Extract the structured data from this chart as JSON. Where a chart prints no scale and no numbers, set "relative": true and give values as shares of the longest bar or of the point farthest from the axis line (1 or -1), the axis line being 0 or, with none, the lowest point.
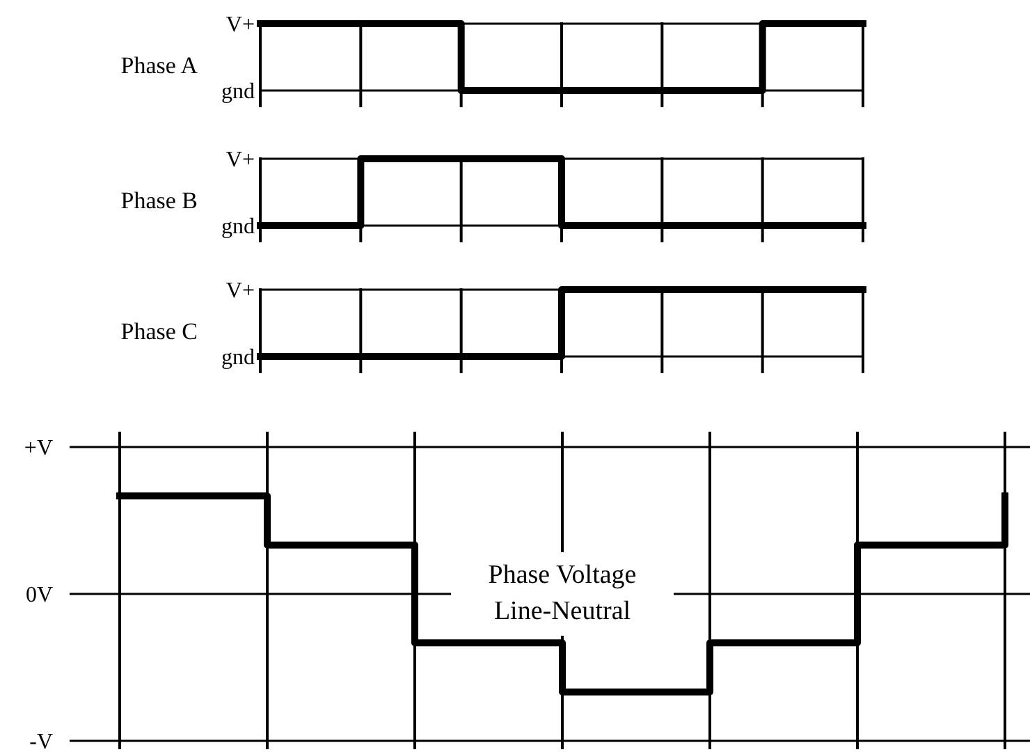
{
  "chart_data": [
    {
      "type": "step",
      "ylabel": "Phase A",
      "categories": [
        null,
        null,
        null,
        null,
        null,
        null,
        null
      ],
      "relative": true,
      "grid": "x",
      "ref_lines": [
        {
          "axis": "y",
          "value": 1,
          "label": "V+"
        },
        {
          "axis": "y",
          "value": 0,
          "label": "gnd"
        }
      ],
      "series": [
        {
          "color": "#000000",
          "values": [
            1,
            1,
            0,
            0,
            0,
            1,
            1
          ]
        }
      ]
    },
    {
      "type": "step",
      "ylabel": "Phase B",
      "categories": [
        null,
        null,
        null,
        null,
        null,
        null,
        null
      ],
      "relative": true,
      "grid": "x",
      "ref_lines": [
        {
          "axis": "y",
          "value": 1,
          "label": "V+"
        },
        {
          "axis": "y",
          "value": 0,
          "label": "gnd"
        }
      ],
      "series": [
        {
          "color": "#000000",
          "values": [
            0,
            1,
            1,
            0,
            0,
            0,
            0
          ]
        }
      ]
    },
    {
      "type": "step",
      "ylabel": "Phase C",
      "categories": [
        null,
        null,
        null,
        null,
        null,
        null,
        null
      ],
      "relative": true,
      "grid": "x",
      "ref_lines": [
        {
          "axis": "y",
          "value": 1,
          "label": "V+"
        },
        {
          "axis": "y",
          "value": 0,
          "label": "gnd"
        }
      ],
      "series": [
        {
          "color": "#000000",
          "values": [
            0,
            0,
            0,
            1,
            1,
            1,
            1
          ]
        }
      ]
    },
    {
      "type": "step",
      "annotations": [
        "Phase Voltage\nLine-Neutral"
      ],
      "categories": [
        null,
        null,
        null,
        null,
        null,
        null,
        null
      ],
      "relative": true,
      "grid": "x",
      "ref_lines": [
        {
          "axis": "y",
          "value": 1.5,
          "label": "+V"
        },
        {
          "axis": "y",
          "value": 0,
          "label": "0V"
        },
        {
          "axis": "y",
          "value": -1.5,
          "label": "-V"
        }
      ],
      "series": [
        {
          "color": "#000000",
          "values": [
            1,
            0.5,
            -0.5,
            -1,
            -0.5,
            0.5,
            1
          ]
        }
      ]
    }
  ]
}
